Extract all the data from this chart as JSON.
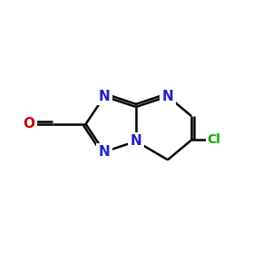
{
  "bg_color": "#ffffff",
  "bond_color": "#000000",
  "bond_width": 1.8,
  "dbo": 0.12,
  "atom_colors": {
    "N": "#2020cc",
    "O": "#cc0000",
    "Cl": "#00aa00"
  },
  "font_size": 11,
  "fig_width": 3.0,
  "fig_height": 3.0
}
